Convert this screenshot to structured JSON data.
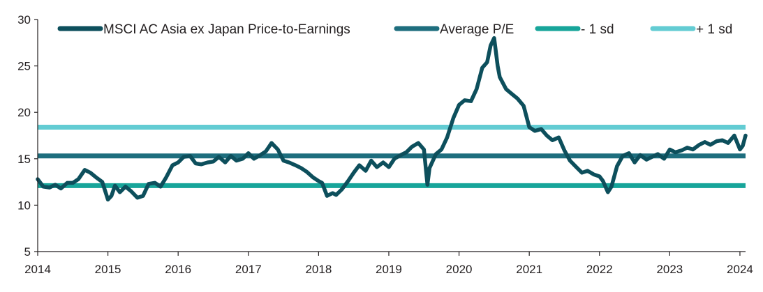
{
  "chart_data": {
    "type": "line",
    "title": "",
    "xlabel": "",
    "ylabel": "",
    "xlim": [
      2014.0,
      2024.08
    ],
    "ylim": [
      5,
      30
    ],
    "x_ticks": [
      "2014",
      "2015",
      "2016",
      "2017",
      "2018",
      "2019",
      "2020",
      "2021",
      "2022",
      "2023",
      "2024"
    ],
    "y_ticks": [
      "5",
      "10",
      "15",
      "20",
      "25",
      "30"
    ],
    "grid": false,
    "legend": {
      "placement": "top"
    },
    "series": [
      {
        "name": "MSCI AC Asia ex Japan Price-to-Earnings",
        "kind": "line",
        "color": "#0d4f5c",
        "points": [
          [
            2014.0,
            12.8
          ],
          [
            2014.08,
            12.0
          ],
          [
            2014.17,
            11.9
          ],
          [
            2014.25,
            12.2
          ],
          [
            2014.33,
            11.8
          ],
          [
            2014.42,
            12.4
          ],
          [
            2014.5,
            12.4
          ],
          [
            2014.58,
            12.8
          ],
          [
            2014.67,
            13.8
          ],
          [
            2014.75,
            13.5
          ],
          [
            2014.83,
            13.0
          ],
          [
            2014.92,
            12.5
          ],
          [
            2015.0,
            10.6
          ],
          [
            2015.05,
            11.0
          ],
          [
            2015.1,
            12.1
          ],
          [
            2015.17,
            11.4
          ],
          [
            2015.25,
            12.0
          ],
          [
            2015.33,
            11.5
          ],
          [
            2015.42,
            10.8
          ],
          [
            2015.5,
            11.0
          ],
          [
            2015.58,
            12.3
          ],
          [
            2015.67,
            12.4
          ],
          [
            2015.75,
            12.0
          ],
          [
            2015.83,
            13.0
          ],
          [
            2015.92,
            14.3
          ],
          [
            2016.0,
            14.6
          ],
          [
            2016.08,
            15.2
          ],
          [
            2016.17,
            15.3
          ],
          [
            2016.25,
            14.5
          ],
          [
            2016.33,
            14.4
          ],
          [
            2016.42,
            14.6
          ],
          [
            2016.5,
            14.7
          ],
          [
            2016.58,
            15.2
          ],
          [
            2016.67,
            14.6
          ],
          [
            2016.75,
            15.3
          ],
          [
            2016.83,
            14.8
          ],
          [
            2016.92,
            15.0
          ],
          [
            2017.0,
            15.6
          ],
          [
            2017.08,
            15.0
          ],
          [
            2017.17,
            15.4
          ],
          [
            2017.25,
            15.8
          ],
          [
            2017.33,
            16.7
          ],
          [
            2017.42,
            16.0
          ],
          [
            2017.5,
            14.8
          ],
          [
            2017.58,
            14.6
          ],
          [
            2017.67,
            14.3
          ],
          [
            2017.75,
            14.0
          ],
          [
            2017.83,
            13.6
          ],
          [
            2017.92,
            13.0
          ],
          [
            2018.0,
            12.6
          ],
          [
            2018.05,
            12.4
          ],
          [
            2018.12,
            11.0
          ],
          [
            2018.2,
            11.3
          ],
          [
            2018.25,
            11.1
          ],
          [
            2018.33,
            11.7
          ],
          [
            2018.42,
            12.6
          ],
          [
            2018.5,
            13.5
          ],
          [
            2018.58,
            14.3
          ],
          [
            2018.67,
            13.7
          ],
          [
            2018.75,
            14.8
          ],
          [
            2018.83,
            14.1
          ],
          [
            2018.92,
            14.6
          ],
          [
            2019.0,
            14.1
          ],
          [
            2019.08,
            15.0
          ],
          [
            2019.17,
            15.4
          ],
          [
            2019.25,
            15.7
          ],
          [
            2019.33,
            16.3
          ],
          [
            2019.42,
            16.7
          ],
          [
            2019.5,
            16.0
          ],
          [
            2019.55,
            12.2
          ],
          [
            2019.58,
            14.0
          ],
          [
            2019.67,
            15.5
          ],
          [
            2019.75,
            16.0
          ],
          [
            2019.83,
            17.3
          ],
          [
            2019.92,
            19.4
          ],
          [
            2020.0,
            20.8
          ],
          [
            2020.08,
            21.3
          ],
          [
            2020.17,
            21.2
          ],
          [
            2020.25,
            22.5
          ],
          [
            2020.33,
            24.8
          ],
          [
            2020.4,
            25.4
          ],
          [
            2020.45,
            27.2
          ],
          [
            2020.5,
            28.0
          ],
          [
            2020.55,
            25.0
          ],
          [
            2020.58,
            23.8
          ],
          [
            2020.67,
            22.5
          ],
          [
            2020.75,
            22.0
          ],
          [
            2020.83,
            21.5
          ],
          [
            2020.92,
            20.7
          ],
          [
            2021.0,
            18.4
          ],
          [
            2021.08,
            18.0
          ],
          [
            2021.17,
            18.2
          ],
          [
            2021.25,
            17.5
          ],
          [
            2021.33,
            17.0
          ],
          [
            2021.42,
            17.3
          ],
          [
            2021.5,
            15.9
          ],
          [
            2021.58,
            14.8
          ],
          [
            2021.67,
            14.1
          ],
          [
            2021.75,
            13.5
          ],
          [
            2021.83,
            13.7
          ],
          [
            2021.92,
            13.3
          ],
          [
            2022.0,
            13.1
          ],
          [
            2022.05,
            12.6
          ],
          [
            2022.12,
            11.4
          ],
          [
            2022.17,
            12.0
          ],
          [
            2022.25,
            14.2
          ],
          [
            2022.33,
            15.3
          ],
          [
            2022.42,
            15.6
          ],
          [
            2022.5,
            14.6
          ],
          [
            2022.58,
            15.4
          ],
          [
            2022.67,
            14.9
          ],
          [
            2022.75,
            15.2
          ],
          [
            2022.83,
            15.5
          ],
          [
            2022.92,
            15.0
          ],
          [
            2023.0,
            16.0
          ],
          [
            2023.08,
            15.7
          ],
          [
            2023.17,
            15.9
          ],
          [
            2023.25,
            16.2
          ],
          [
            2023.33,
            16.0
          ],
          [
            2023.42,
            16.5
          ],
          [
            2023.5,
            16.8
          ],
          [
            2023.58,
            16.5
          ],
          [
            2023.67,
            16.9
          ],
          [
            2023.75,
            17.0
          ],
          [
            2023.83,
            16.7
          ],
          [
            2023.92,
            17.5
          ],
          [
            2024.0,
            16.0
          ],
          [
            2024.04,
            16.4
          ],
          [
            2024.08,
            17.5
          ]
        ]
      },
      {
        "name": "Average P/E",
        "kind": "hline",
        "color": "#1e6e7e",
        "value": 15.3
      },
      {
        "name": "- 1 sd",
        "kind": "hline",
        "color": "#17a59a",
        "value": 12.1
      },
      {
        "name": "+ 1 sd",
        "kind": "hline",
        "color": "#63ccd3",
        "value": 18.4
      }
    ]
  }
}
